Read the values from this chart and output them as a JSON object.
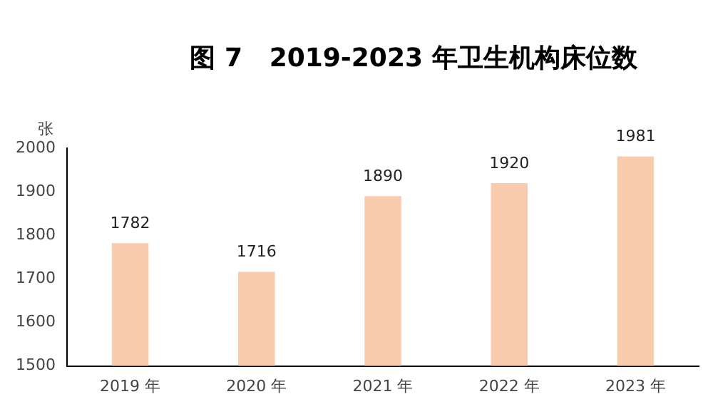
{
  "chart_data": {
    "type": "bar",
    "title": "图 7   2019-2023 年卫生机构床位数",
    "ylabel": "张",
    "categories": [
      "2019 年",
      "2020 年",
      "2021 年",
      "2022 年",
      "2023 年"
    ],
    "values": [
      1782,
      1716,
      1890,
      1920,
      1981
    ],
    "color": "#f8cbad",
    "ylim": [
      1500,
      2000
    ],
    "yticks": [
      1500,
      1600,
      1700,
      1800,
      1900,
      2000
    ],
    "grid": false,
    "legend": false,
    "data_labels": true
  }
}
